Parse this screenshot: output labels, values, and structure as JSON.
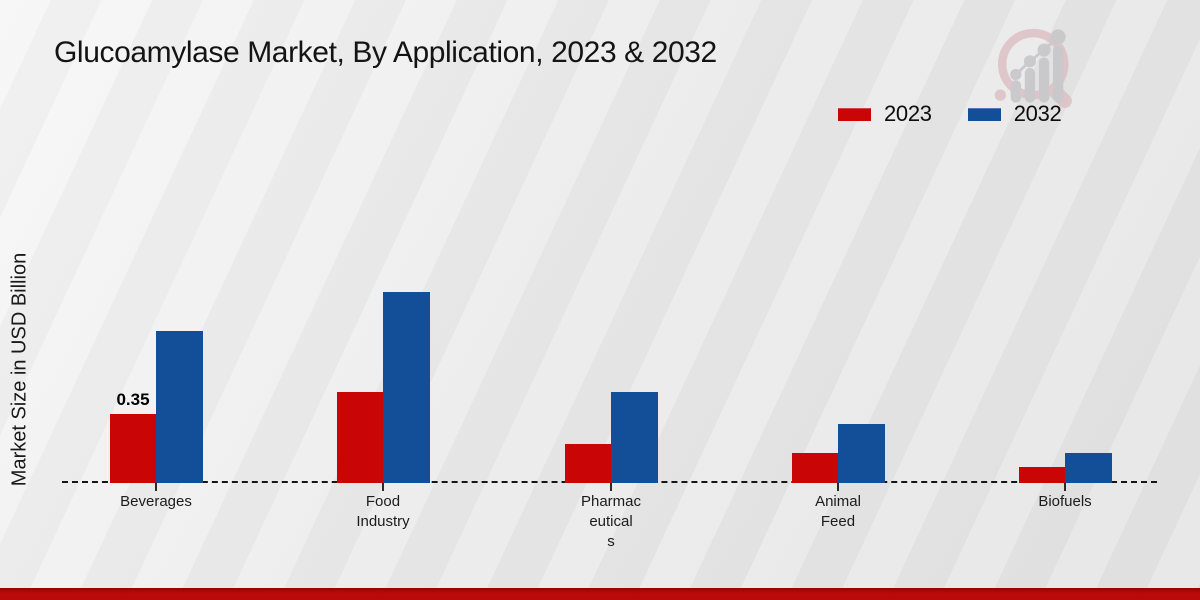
{
  "title": "Glucoamylase Market, By Application, 2023 & 2032",
  "ylabel": "Market Size in USD Billion",
  "legend": {
    "position": "top-right",
    "items": [
      {
        "label": "2023",
        "color": "#c90505"
      },
      {
        "label": "2032",
        "color": "#124f98"
      }
    ]
  },
  "watermark_icon": "magnifier-bar-chart-logo",
  "colors": {
    "series_2023": "#c90505",
    "series_2032": "#124f98",
    "footer_strip": "#bb0a0a",
    "baseline": "#151515",
    "background": "#eaeaea"
  },
  "chart_data": {
    "type": "bar",
    "title": "Glucoamylase Market, By Application, 2023 & 2032",
    "xlabel": "",
    "ylabel": "Market Size in USD Billion",
    "categories": [
      "Beverages",
      "Food Industry",
      "Pharmaceuticals",
      "Animal Feed",
      "Biofuels"
    ],
    "category_label_lines": [
      [
        "Beverages"
      ],
      [
        "Food",
        "Industry"
      ],
      [
        "Pharmac",
        "eutical",
        "s"
      ],
      [
        "Animal",
        "Feed"
      ],
      [
        "Biofuels"
      ]
    ],
    "series": [
      {
        "name": "2023",
        "color": "#c90505",
        "values": [
          0.35,
          0.46,
          0.2,
          0.15,
          0.08
        ]
      },
      {
        "name": "2032",
        "color": "#124f98",
        "values": [
          0.77,
          0.97,
          0.46,
          0.3,
          0.15
        ]
      }
    ],
    "ylim": [
      0,
      1.05
    ],
    "grid": false,
    "y_axis_ticks_visible": false,
    "baseline_style": "dashed",
    "legend_position": "top-right",
    "data_labels": [
      {
        "series": "2023",
        "category": "Beverages",
        "text": "0.35"
      }
    ]
  }
}
